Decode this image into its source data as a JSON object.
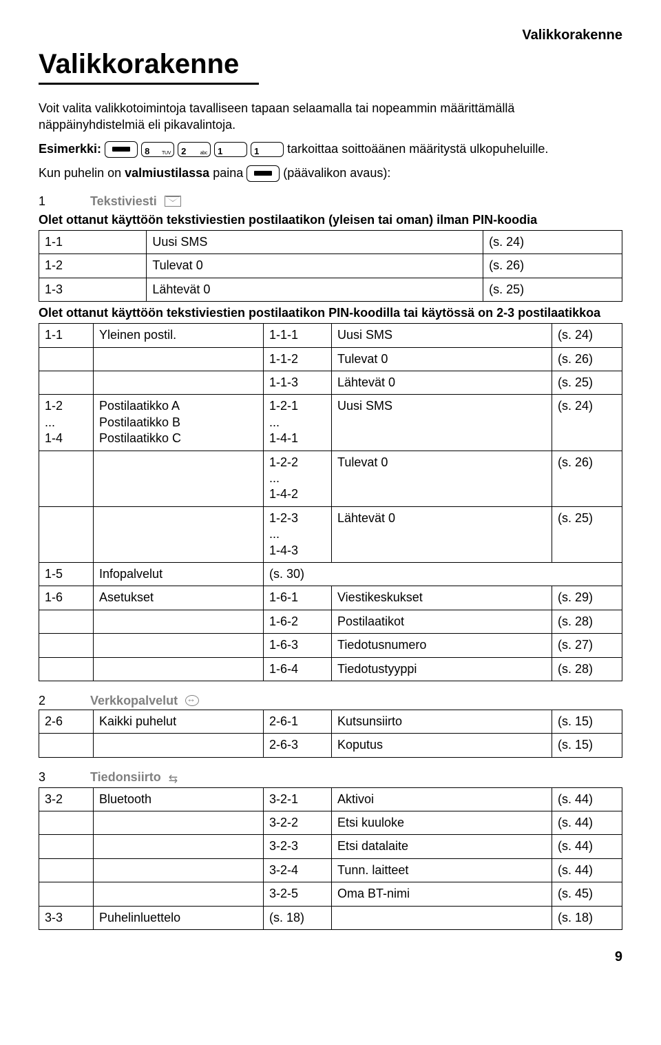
{
  "hdr": {
    "right": "Valikkorakenne",
    "title": "Valikkorakenne"
  },
  "intro": {
    "p1": "Voit valita valikkotoimintoja tavalliseen tapaan selaamalla tai nopeammin määrittämällä näppäinyhdistelmiä eli pikavalintoja.",
    "ex_pre": "Esimerkki:",
    "ex_post": " tarkoittaa soittoäänen määritystä ulkopuheluille.",
    "p3a": "Kun puhelin on ",
    "p3b": "valmiustilassa",
    "p3c": " paina ",
    "p3d": " (päävalikon avaus):",
    "keys": [
      {
        "n": "8",
        "t": "TUV"
      },
      {
        "n": "2",
        "t": "abc"
      },
      {
        "n": "1",
        "t": ""
      },
      {
        "n": "1",
        "t": ""
      }
    ]
  },
  "s1": {
    "num": "1",
    "lbl": "Tekstiviesti"
  },
  "note1": "Olet ottanut käyttöön tekstiviestien postilaatikon (yleisen tai oman) ilman PIN-koodia",
  "t1": [
    [
      "1-1",
      "Uusi SMS",
      "(s. 24)"
    ],
    [
      "1-2",
      "Tulevat  0",
      "(s. 26)"
    ],
    [
      "1-3",
      "Lähtevät  0",
      "(s. 25)"
    ]
  ],
  "note2": "Olet ottanut käyttöön tekstiviestien postilaatikon PIN-koodilla tai käytössä on 2-3 postilaatikkoa",
  "t2": [
    [
      "1-1",
      "Yleinen postil.",
      "1-1-1",
      "Uusi SMS",
      "(s. 24)"
    ],
    [
      "",
      "",
      "1-1-2",
      "Tulevat  0",
      "(s. 26)"
    ],
    [
      "",
      "",
      "1-1-3",
      "Lähtevät  0",
      "(s. 25)"
    ],
    [
      "1-2\n...\n1-4",
      "Postilaatikko A\nPostilaatikko B\nPostilaatikko C",
      "1-2-1\n...\n1-4-1",
      "Uusi SMS",
      "(s. 24)"
    ],
    [
      "",
      "",
      "1-2-2\n...\n1-4-2",
      "Tulevat  0",
      "(s. 26)"
    ],
    [
      "",
      "",
      "1-2-3\n...\n1-4-3",
      "Lähtevät  0",
      "(s. 25)"
    ]
  ],
  "t3": [
    [
      "1-5",
      "Infopalvelut",
      "(s. 30)",
      "",
      ""
    ]
  ],
  "t4": [
    [
      "1-6",
      "Asetukset",
      "1-6-1",
      "Viestikeskukset",
      "(s. 29)"
    ],
    [
      "",
      "",
      "1-6-2",
      "Postilaatikot",
      "(s. 28)"
    ],
    [
      "",
      "",
      "1-6-3",
      "Tiedotusnumero",
      "(s. 27)"
    ],
    [
      "",
      "",
      "1-6-4",
      "Tiedotustyyppi",
      "(s. 28)"
    ]
  ],
  "s2": {
    "num": "2",
    "lbl": "Verkkopalvelut"
  },
  "t5": [
    [
      "2-6",
      "Kaikki puhelut",
      "2-6-1",
      "Kutsunsiirto",
      "(s. 15)"
    ],
    [
      "",
      "",
      "2-6-3",
      "Koputus",
      "(s. 15)"
    ]
  ],
  "s3": {
    "num": "3",
    "lbl": "Tiedonsiirto"
  },
  "t6": [
    [
      "3-2",
      "Bluetooth",
      "3-2-1",
      "Aktivoi",
      "(s. 44)"
    ],
    [
      "",
      "",
      "3-2-2",
      "Etsi kuuloke",
      "(s. 44)"
    ],
    [
      "",
      "",
      "3-2-3",
      "Etsi datalaite",
      "(s. 44)"
    ],
    [
      "",
      "",
      "3-2-4",
      "Tunn. laitteet",
      "(s. 44)"
    ],
    [
      "",
      "",
      "3-2-5",
      "Oma BT-nimi",
      "(s. 45)"
    ]
  ],
  "t7": [
    [
      "3-3",
      "Puhelinluettelo",
      "(s. 18)",
      "",
      "(s. 18)"
    ]
  ],
  "pg": "9"
}
